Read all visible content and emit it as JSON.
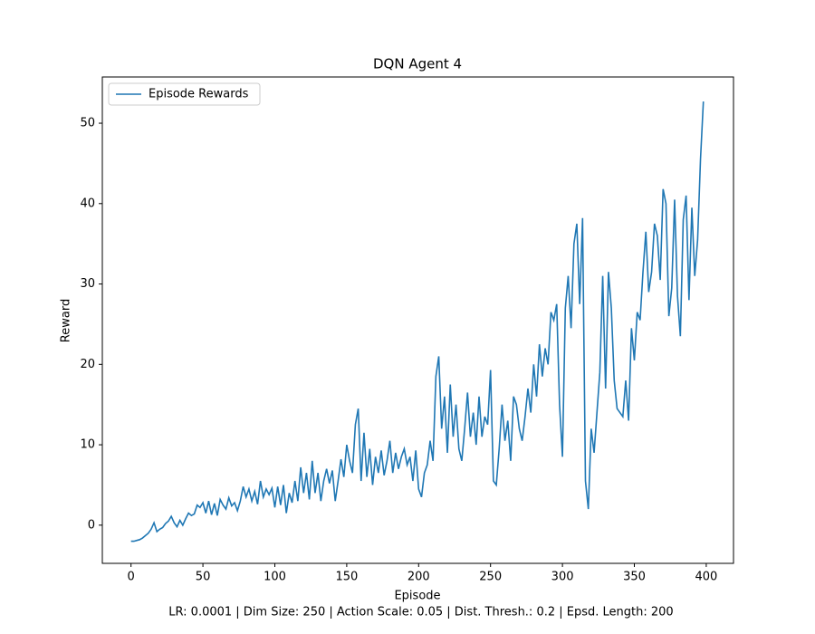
{
  "chart_data": {
    "type": "line",
    "title": "DQN Agent 4",
    "xlabel": "Episode",
    "ylabel": "Reward",
    "caption": "LR: 0.0001 | Dim Size: 250 | Action Scale: 0.05 | Dist. Thresh.: 0.2 | Epsd. Length: 200",
    "legend": "upper left",
    "xlim": [
      -19.95,
      418.95
    ],
    "ylim": [
      -4.75,
      55.75
    ],
    "xticks": [
      0,
      50,
      100,
      150,
      200,
      250,
      300,
      350,
      400
    ],
    "yticks": [
      0,
      10,
      20,
      30,
      40,
      50
    ],
    "x": [
      0,
      2,
      4,
      6,
      8,
      10,
      12,
      14,
      16,
      18,
      20,
      22,
      24,
      26,
      28,
      30,
      32,
      34,
      36,
      38,
      40,
      42,
      44,
      46,
      48,
      50,
      52,
      54,
      56,
      58,
      60,
      62,
      64,
      66,
      68,
      70,
      72,
      74,
      76,
      78,
      80,
      82,
      84,
      86,
      88,
      90,
      92,
      94,
      96,
      98,
      100,
      102,
      104,
      106,
      108,
      110,
      112,
      114,
      116,
      118,
      120,
      122,
      124,
      126,
      128,
      130,
      132,
      134,
      136,
      138,
      140,
      142,
      144,
      146,
      148,
      150,
      152,
      154,
      156,
      158,
      160,
      162,
      164,
      166,
      168,
      170,
      172,
      174,
      176,
      178,
      180,
      182,
      184,
      186,
      188,
      190,
      192,
      194,
      196,
      198,
      200,
      202,
      204,
      206,
      208,
      210,
      212,
      214,
      216,
      218,
      220,
      222,
      224,
      226,
      228,
      230,
      232,
      234,
      236,
      238,
      240,
      242,
      244,
      246,
      248,
      250,
      252,
      254,
      256,
      258,
      260,
      262,
      264,
      266,
      268,
      270,
      272,
      274,
      276,
      278,
      280,
      282,
      284,
      286,
      288,
      290,
      292,
      294,
      296,
      298,
      300,
      302,
      304,
      306,
      308,
      310,
      312,
      314,
      316,
      318,
      320,
      322,
      324,
      326,
      328,
      330,
      332,
      334,
      336,
      338,
      340,
      342,
      344,
      346,
      348,
      350,
      352,
      354,
      356,
      358,
      360,
      362,
      364,
      366,
      368,
      370,
      372,
      374,
      376,
      378,
      380,
      382,
      384,
      386,
      388,
      390,
      392,
      394,
      396,
      398
    ],
    "series": [
      {
        "name": "Episode Rewards",
        "color": "#1f77b4",
        "values": [
          -2,
          -2,
          -1.9,
          -1.8,
          -1.6,
          -1.3,
          -1,
          -0.5,
          0.3,
          -0.8,
          -0.5,
          -0.3,
          0.2,
          0.5,
          1.1,
          0.3,
          -0.2,
          0.6,
          0,
          0.8,
          1.5,
          1.2,
          1.4,
          2.5,
          2.2,
          2.8,
          1.5,
          3,
          1.3,
          2.7,
          1.2,
          3.2,
          2.5,
          2,
          3.4,
          2.4,
          2.8,
          1.8,
          3,
          4.8,
          3.5,
          4.5,
          3,
          4.2,
          2.6,
          5.5,
          3.5,
          4.5,
          3.8,
          4.6,
          2.2,
          4.8,
          2.5,
          5,
          1.5,
          4,
          2.8,
          5.5,
          3,
          7.2,
          4,
          6.5,
          3.2,
          8,
          4,
          6.5,
          3,
          5.5,
          7,
          5.2,
          6.8,
          3,
          5.5,
          8.2,
          6,
          10,
          8,
          6.5,
          12.5,
          14.5,
          5.5,
          11.5,
          6,
          9.5,
          5,
          8.5,
          6.5,
          9.3,
          6.2,
          8,
          10.5,
          6.5,
          9,
          7,
          8.5,
          9.5,
          7.5,
          8.5,
          5.5,
          9.3,
          4.5,
          3.5,
          6.5,
          7.5,
          10.5,
          8,
          18.5,
          21,
          12,
          16,
          9,
          17.5,
          11,
          15,
          9.5,
          8,
          12,
          16.5,
          11,
          14,
          10,
          16,
          11,
          13.5,
          12.5,
          19.3,
          5.5,
          5,
          9.5,
          15,
          10.5,
          13,
          8,
          16,
          15,
          12,
          10.5,
          13.5,
          17,
          14,
          20,
          16,
          22.5,
          18.5,
          22,
          20,
          26.5,
          25.5,
          27.5,
          15,
          8.5,
          27,
          31,
          24.5,
          35,
          37.5,
          27.5,
          38.2,
          5.5,
          2,
          12,
          9,
          14,
          19,
          31,
          17,
          31.5,
          27,
          18,
          14.5,
          14,
          13.5,
          18,
          13,
          24.5,
          20.5,
          26.5,
          25.5,
          31.5,
          36.5,
          29,
          31.5,
          37.5,
          36,
          30.5,
          41.8,
          40,
          26,
          29.5,
          40.5,
          28.5,
          23.5,
          38,
          41,
          28,
          39.5,
          31,
          35.5,
          45.5,
          52.7
        ]
      }
    ]
  }
}
